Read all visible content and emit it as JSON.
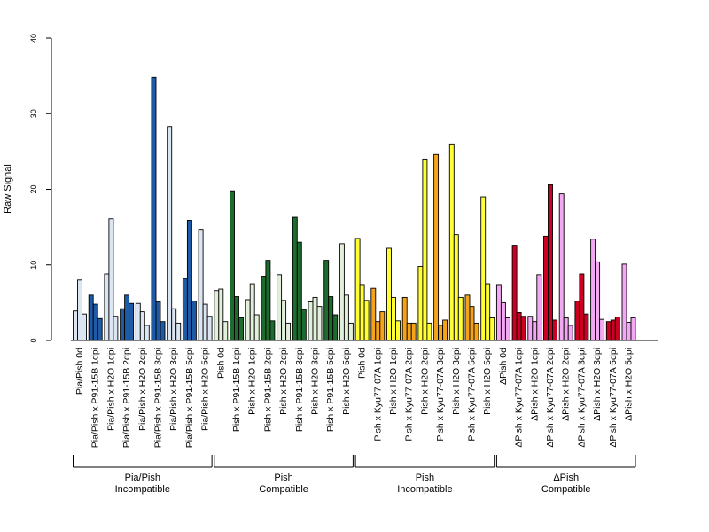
{
  "chart_data": {
    "type": "bar",
    "title": "",
    "xlabel": "",
    "ylabel": "Raw Signal",
    "ylim": [
      0,
      40
    ],
    "yticks": [
      0,
      10,
      20,
      30,
      40
    ],
    "grid": false,
    "legend": "none",
    "bars_per_category": 3,
    "categories": [
      {
        "label": "Pia/Pish 0d",
        "color": "#dce6f2",
        "values": [
          3.9,
          8.0,
          3.5
        ]
      },
      {
        "label": "Pia/Pish x P91-15B 1dpi",
        "color": "#1f5aa6",
        "values": [
          6.0,
          4.8,
          2.9
        ]
      },
      {
        "label": "Pia/Pish x H2O 1dpi",
        "color": "#dce6f2",
        "values": [
          8.8,
          16.1,
          3.2
        ]
      },
      {
        "label": "Pia/Pish x P91-15B 2dpi",
        "color": "#1f5aa6",
        "values": [
          4.2,
          6.0,
          4.9
        ]
      },
      {
        "label": "Pia/Pish x H2O 2dpi",
        "color": "#dce6f2",
        "values": [
          4.9,
          3.8,
          2.0
        ]
      },
      {
        "label": "Pia/Pish x P91-15B 3dpi",
        "color": "#1f5aa6",
        "values": [
          34.8,
          5.1,
          2.5
        ]
      },
      {
        "label": "Pia/Pish x H2O 3dpi",
        "color": "#dce6f2",
        "values": [
          28.3,
          4.2,
          2.3
        ]
      },
      {
        "label": "Pia/Pish x P91-15B 5dpi",
        "color": "#1f5aa6",
        "values": [
          8.2,
          15.9,
          5.2
        ]
      },
      {
        "label": "Pia/Pish x H2O 5dpi",
        "color": "#dce6f2",
        "values": [
          14.7,
          4.8,
          3.2
        ]
      },
      {
        "label": "Pish 0d",
        "color": "#e2efda",
        "values": [
          6.6,
          6.8,
          2.5
        ]
      },
      {
        "label": "Pish x P91-15B 1dpi",
        "color": "#1e6b2e",
        "values": [
          19.8,
          5.8,
          3.0
        ]
      },
      {
        "label": "Pish x H2O 1dpi",
        "color": "#e2efda",
        "values": [
          5.4,
          7.5,
          3.4
        ]
      },
      {
        "label": "Pish x P91-15B 2dpi",
        "color": "#1e6b2e",
        "values": [
          8.5,
          10.6,
          2.6
        ]
      },
      {
        "label": "Pish x H2O 2dpi",
        "color": "#e2efda",
        "values": [
          8.7,
          5.3,
          2.3
        ]
      },
      {
        "label": "Pish x P91-15B 3dpi",
        "color": "#1e6b2e",
        "values": [
          16.3,
          13.0,
          4.1
        ]
      },
      {
        "label": "Pish x H2O 3dpi",
        "color": "#e2efda",
        "values": [
          5.1,
          5.7,
          4.5
        ]
      },
      {
        "label": "Pish x P91-15B 5dpi",
        "color": "#1e6b2e",
        "values": [
          10.6,
          5.8,
          3.4
        ]
      },
      {
        "label": "Pish x H2O 5dpi",
        "color": "#e2efda",
        "values": [
          12.8,
          6.0,
          2.3
        ]
      },
      {
        "label": "Pish 0d",
        "color": "#ffff33",
        "values": [
          13.5,
          7.4,
          5.3
        ]
      },
      {
        "label": "Pish x Kyu77-07A 1dpi",
        "color": "#f5a41a",
        "values": [
          6.9,
          2.5,
          3.8
        ]
      },
      {
        "label": "Pish x H2O 1dpi",
        "color": "#ffff33",
        "values": [
          12.2,
          5.7,
          2.6
        ]
      },
      {
        "label": "Pish x Kyu77-07A 2dpi",
        "color": "#f5a41a",
        "values": [
          5.7,
          2.3,
          2.3
        ]
      },
      {
        "label": "Pish x H2O 2dpi",
        "color": "#ffff33",
        "values": [
          9.8,
          24.0,
          2.3
        ]
      },
      {
        "label": "Pish x Kyu77-07A 3dpi",
        "color": "#f5a41a",
        "values": [
          24.6,
          2.0,
          2.7
        ]
      },
      {
        "label": "Pish x H2O 3dpi",
        "color": "#ffff33",
        "values": [
          26.0,
          14.0,
          5.7
        ]
      },
      {
        "label": "Pish x Kyu77-07A 5dpi",
        "color": "#f5a41a",
        "values": [
          6.0,
          4.5,
          2.3
        ]
      },
      {
        "label": "Pish x H2O 5dpi",
        "color": "#ffff33",
        "values": [
          19.0,
          7.5,
          3.0
        ]
      },
      {
        "label": "ΔPish 0d",
        "color": "#f2a8f2",
        "values": [
          7.4,
          5.0,
          3.0
        ]
      },
      {
        "label": "ΔPish x Kyu77-07A 1dpi",
        "color": "#cc0022",
        "values": [
          12.6,
          3.7,
          3.2
        ]
      },
      {
        "label": "ΔPish x H2O 1dpi",
        "color": "#f2a8f2",
        "values": [
          3.2,
          2.5,
          8.7
        ]
      },
      {
        "label": "ΔPish x Kyu77-07A 2dpi",
        "color": "#cc0022",
        "values": [
          13.8,
          20.6,
          2.7
        ]
      },
      {
        "label": "ΔPish x H2O 2dpi",
        "color": "#f2a8f2",
        "values": [
          19.4,
          3.0,
          2.0
        ]
      },
      {
        "label": "ΔPish x Kyu77-07A 3dpi",
        "color": "#cc0022",
        "values": [
          5.2,
          8.8,
          3.5
        ]
      },
      {
        "label": "ΔPish x H2O 3dpi",
        "color": "#f2a8f2",
        "values": [
          13.4,
          10.4,
          2.8
        ]
      },
      {
        "label": "ΔPish x Kyu77-07A 5dpi",
        "color": "#cc0022",
        "values": [
          2.5,
          2.7,
          3.1
        ]
      },
      {
        "label": "ΔPish x H2O 5dpi",
        "color": "#f2a8f2",
        "values": [
          10.1,
          2.4,
          3.0
        ]
      }
    ],
    "groups": [
      {
        "line1": "Pia/Pish",
        "line2": "Incompatible",
        "first": 0,
        "last": 8
      },
      {
        "line1": "Pish",
        "line2": "Compatible",
        "first": 9,
        "last": 17
      },
      {
        "line1": "Pish",
        "line2": "Incompatible",
        "first": 18,
        "last": 26
      },
      {
        "line1": "ΔPish",
        "line2": "Compatible",
        "first": 27,
        "last": 35
      }
    ]
  }
}
